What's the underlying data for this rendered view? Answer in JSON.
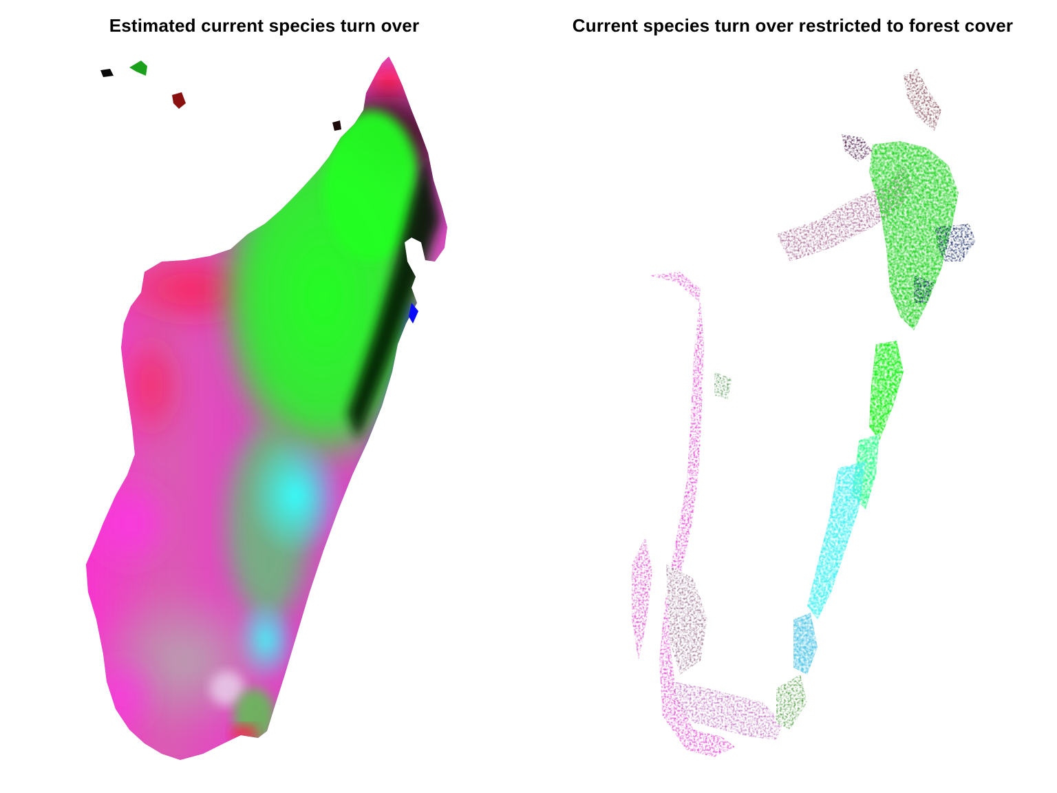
{
  "panels": [
    {
      "title": "Estimated current species turn over"
    },
    {
      "title": "Current species turn over restricted to forest cover"
    }
  ],
  "colors": {
    "west_magenta": "#ff2bd6",
    "northwest_red": "#ff1a4d",
    "central_green": "#22ff22",
    "escarpment_dark": "#0a1a0a",
    "east_blue": "#0a0aff",
    "southeast_cyan": "#33ffff",
    "south_gray": "#9a8f8f",
    "background": "#ffffff"
  }
}
